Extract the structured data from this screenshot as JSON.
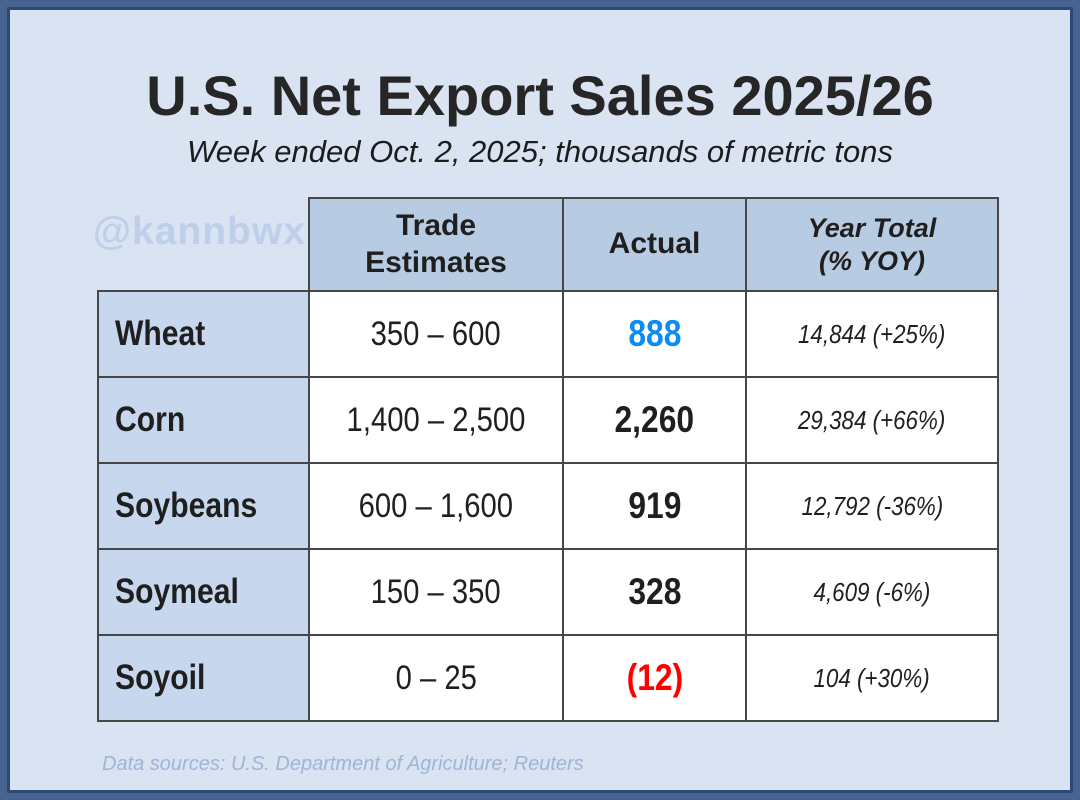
{
  "page": {
    "title": "U.S. Net Export Sales 2025/26",
    "subtitle": "Week ended Oct. 2, 2025; thousands of metric tons",
    "watermark": "@kannbwx",
    "footer": "Data sources: U.S. Department of Agriculture; Reuters"
  },
  "table": {
    "headers": {
      "trade_estimates": "Trade\nEstimates",
      "actual": "Actual",
      "year_total": "Year Total\n(% YOY)"
    },
    "rows": [
      {
        "commodity": "Wheat",
        "trade_estimates": "350 – 600",
        "actual": "888",
        "year_total": "14,844 (+25%)",
        "actual_color": "#0b8cf4"
      },
      {
        "commodity": "Corn",
        "trade_estimates": "1,400 – 2,500",
        "actual": "2,260",
        "year_total": "29,384 (+66%)",
        "actual_color": "#000000"
      },
      {
        "commodity": "Soybeans",
        "trade_estimates": "600 – 1,600",
        "actual": "919",
        "year_total": "12,792 (-36%)",
        "actual_color": "#000000"
      },
      {
        "commodity": "Soymeal",
        "trade_estimates": "150 – 350",
        "actual": "328",
        "year_total": "4,609 (-6%)",
        "actual_color": "#000000"
      },
      {
        "commodity": "Soyoil",
        "trade_estimates": "0 – 25",
        "actual": "(12)",
        "year_total": "104 (+30%)",
        "actual_color": "#fe0000"
      }
    ]
  },
  "colors": {
    "frame_border": "#46648f",
    "frame_inner_line": "#2e4977",
    "background": "#d9e3f2",
    "header_bg": "#b7cbe2",
    "row_label_bg": "#c7d7ee",
    "cell_border": "#474747",
    "actual_highlight_blue": "#0b8cf4",
    "actual_negative_red": "#fe0000",
    "watermark_text": "#bdcfe9",
    "footer_text": "#9db5d6"
  },
  "chart_data": {
    "type": "table",
    "title": "U.S. Net Export Sales 2025/26",
    "subtitle": "Week ended Oct. 2, 2025; thousands of metric tons",
    "columns": [
      "",
      "Trade Estimates",
      "Actual",
      "Year Total (% YOY)"
    ],
    "rows": [
      [
        "Wheat",
        "350 – 600",
        888,
        "14,844 (+25%)"
      ],
      [
        "Corn",
        "1,400 – 2,500",
        2260,
        "29,384 (+66%)"
      ],
      [
        "Soybeans",
        "600 – 1,600",
        919,
        "12,792 (-36%)"
      ],
      [
        "Soymeal",
        "150 – 350",
        328,
        "4,609 (-6%)"
      ],
      [
        "Soyoil",
        "0 – 25",
        -12,
        "104 (+30%)"
      ]
    ],
    "notes": "Actual values in thousands of metric tons; Wheat actual shown in blue, negative Soyoil actual (12) shown in red parentheses"
  }
}
